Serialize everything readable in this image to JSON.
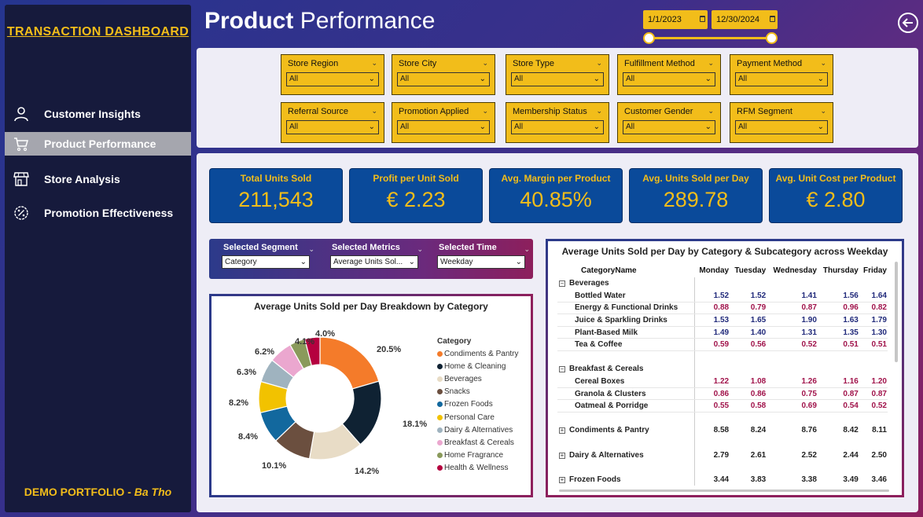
{
  "sidebar": {
    "brand": "TRANSACTION DASHBOARD",
    "items": [
      {
        "label": "Customer Insights",
        "icon": "user-icon"
      },
      {
        "label": "Product Performance",
        "icon": "cart-icon"
      },
      {
        "label": "Store Analysis",
        "icon": "store-icon"
      },
      {
        "label": "Promotion Effectiveness",
        "icon": "percent-badge-icon"
      }
    ],
    "active_index": 1,
    "footer_prefix": "DEMO PORTFOLIO - ",
    "footer_name": "Ba Tho"
  },
  "header": {
    "title_bold": "Product",
    "title_rest": "Performance",
    "date_start": "1/1/2023",
    "date_end": "12/30/2024"
  },
  "filters": [
    {
      "label": "Store Region",
      "value": "All"
    },
    {
      "label": "Store City",
      "value": "All"
    },
    {
      "label": "Store Type",
      "value": "All"
    },
    {
      "label": "Fulfillment Method",
      "value": "All"
    },
    {
      "label": "Payment Method",
      "value": "All"
    },
    {
      "label": "Referral Source",
      "value": "All"
    },
    {
      "label": "Promotion Applied",
      "value": "All"
    },
    {
      "label": "Membership Status",
      "value": "All"
    },
    {
      "label": "Customer Gender",
      "value": "All"
    },
    {
      "label": "RFM Segment",
      "value": "All"
    }
  ],
  "kpis": [
    {
      "title": "Total Units Sold",
      "value": "211,543"
    },
    {
      "title": "Profit per Unit Sold",
      "value": "€ 2.23"
    },
    {
      "title": "Avg. Margin per Product",
      "value": "40.85%"
    },
    {
      "title": "Avg. Units Sold per Day",
      "value": "289.78"
    },
    {
      "title": "Avg. Unit Cost per Product",
      "value": "€ 2.80"
    }
  ],
  "selectors": [
    {
      "label": "Selected Segment",
      "value": "Category"
    },
    {
      "label": "Selected Metrics",
      "value": "Average Units Sol..."
    },
    {
      "label": "Selected Time",
      "value": "Weekday"
    }
  ],
  "chart_data": {
    "type": "pie",
    "title": "Average Units Sold per Day Breakdown by Category",
    "legend_title": "Category",
    "legend_position": "right",
    "categories": [
      "Condiments & Pantry",
      "Home & Cleaning",
      "Beverages",
      "Snacks",
      "Frozen Foods",
      "Personal Care",
      "Dairy & Alternatives",
      "Breakfast & Cereals",
      "Home Fragrance",
      "Health & Wellness"
    ],
    "values": [
      20.5,
      18.1,
      14.2,
      10.1,
      8.4,
      8.2,
      6.3,
      6.2,
      4.1,
      4.0
    ],
    "labels": [
      "20.5%",
      "18.1%",
      "14.2%",
      "10.1%",
      "8.4%",
      "8.2%",
      "6.3%",
      "6.2%",
      "4.1%",
      "4.0%"
    ],
    "colors": [
      "#f47b2a",
      "#0f2233",
      "#e8dcc6",
      "#6b4f3f",
      "#12689e",
      "#f2c200",
      "#9fb3bf",
      "#eba7cf",
      "#8a9a5b",
      "#b5003f"
    ]
  },
  "matrix": {
    "title": "Average Units Sold per Day by Category & Subcategory across Weekday",
    "corner": "CategoryName",
    "columns": [
      "Monday",
      "Tuesday",
      "Wednesday",
      "Thursday",
      "Friday"
    ],
    "rows": [
      {
        "type": "group",
        "name": "Beverages",
        "expanded": true,
        "values": [
          "",
          "",
          "",
          "",
          ""
        ]
      },
      {
        "type": "sub",
        "name": "Bottled Water",
        "color": "b",
        "values": [
          "1.52",
          "1.52",
          "1.41",
          "1.56",
          "1.64"
        ]
      },
      {
        "type": "sub",
        "name": "Energy & Functional Drinks",
        "color": "r",
        "values": [
          "0.88",
          "0.79",
          "0.87",
          "0.96",
          "0.82"
        ]
      },
      {
        "type": "sub",
        "name": "Juice & Sparkling Drinks",
        "color": "b",
        "values": [
          "1.53",
          "1.65",
          "1.90",
          "1.63",
          "1.79"
        ]
      },
      {
        "type": "sub",
        "name": "Plant-Based Milk",
        "color": "b",
        "values": [
          "1.49",
          "1.40",
          "1.31",
          "1.35",
          "1.30"
        ]
      },
      {
        "type": "sub",
        "name": "Tea & Coffee",
        "color": "r",
        "values": [
          "0.59",
          "0.56",
          "0.52",
          "0.51",
          "0.51"
        ]
      },
      {
        "type": "blank"
      },
      {
        "type": "group",
        "name": "Breakfast & Cereals",
        "expanded": true,
        "values": [
          "",
          "",
          "",
          "",
          ""
        ]
      },
      {
        "type": "sub",
        "name": "Cereal Boxes",
        "color": "r",
        "values": [
          "1.22",
          "1.08",
          "1.26",
          "1.16",
          "1.20"
        ]
      },
      {
        "type": "sub",
        "name": "Granola & Clusters",
        "color": "r",
        "values": [
          "0.86",
          "0.86",
          "0.75",
          "0.87",
          "0.87"
        ]
      },
      {
        "type": "sub",
        "name": "Oatmeal & Porridge",
        "color": "r",
        "values": [
          "0.55",
          "0.58",
          "0.69",
          "0.54",
          "0.52"
        ]
      },
      {
        "type": "blank"
      },
      {
        "type": "group",
        "name": "Condiments & Pantry",
        "expanded": false,
        "values": [
          "8.58",
          "8.24",
          "8.76",
          "8.42",
          "8.11"
        ]
      },
      {
        "type": "blank"
      },
      {
        "type": "group",
        "name": "Dairy & Alternatives",
        "expanded": false,
        "values": [
          "2.79",
          "2.61",
          "2.52",
          "2.44",
          "2.50"
        ]
      },
      {
        "type": "blank"
      },
      {
        "type": "group",
        "name": "Frozen Foods",
        "expanded": false,
        "values": [
          "3.44",
          "3.83",
          "3.38",
          "3.49",
          "3.46"
        ]
      }
    ]
  }
}
